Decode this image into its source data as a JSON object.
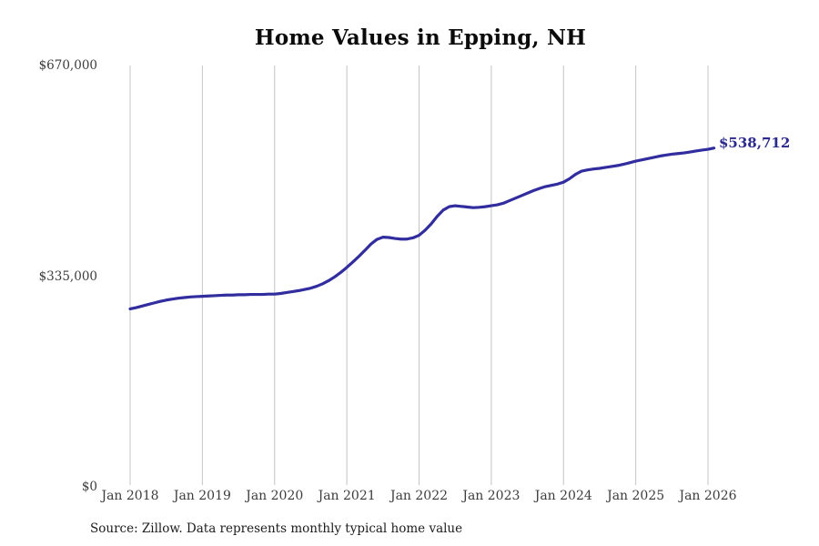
{
  "chart_data": {
    "type": "line",
    "title": "Home Values in Epping, NH",
    "source_note": "Source: Zillow. Data represents monthly typical home value",
    "end_label": "$538,712",
    "line_color": "#312d9e",
    "end_label_color": "#2b2a8c",
    "gridline_color": "#c4c4c4",
    "tick_label_color": "#3c3c3c",
    "ylim": [
      0,
      670000
    ],
    "grid": "vertical-only",
    "legend": "none",
    "y_ticks": [
      {
        "value": 0,
        "label": "$0"
      },
      {
        "value": 335000,
        "label": "$335,000"
      },
      {
        "value": 670000,
        "label": "$670,000"
      }
    ],
    "x_tick_labels": [
      "Jan 2018",
      "Jan 2019",
      "Jan 2020",
      "Jan 2021",
      "Jan 2022",
      "Jan 2023",
      "Jan 2024",
      "Jan 2025",
      "Jan 2026"
    ],
    "months_per_x_tick": 12,
    "series": [
      {
        "name": "Monthly typical home value",
        "start_month": "Jan 2018",
        "values": [
          283000,
          285000,
          287500,
          290000,
          292500,
          295000,
          297000,
          298500,
          300000,
          301000,
          302000,
          302500,
          303000,
          303500,
          304000,
          304500,
          305000,
          305000,
          305500,
          305500,
          306000,
          306000,
          306000,
          306500,
          306500,
          307500,
          309000,
          310500,
          312000,
          314000,
          316000,
          319000,
          323000,
          328000,
          334000,
          341000,
          349000,
          357500,
          366500,
          376000,
          386000,
          393500,
          397000,
          396500,
          395000,
          394000,
          394000,
          396000,
          400000,
          408000,
          418000,
          430000,
          440000,
          445500,
          447000,
          446000,
          445000,
          444000,
          444500,
          445500,
          447000,
          448500,
          451000,
          455000,
          459000,
          463000,
          467000,
          471000,
          474500,
          477500,
          479500,
          481500,
          484500,
          490000,
          497000,
          502000,
          504000,
          505500,
          506500,
          508000,
          509500,
          511000,
          513000,
          515500,
          518000,
          520000,
          522000,
          524000,
          526000,
          527500,
          529000,
          530000,
          531000,
          532500,
          534000,
          535500,
          536800,
          538712
        ]
      }
    ]
  }
}
